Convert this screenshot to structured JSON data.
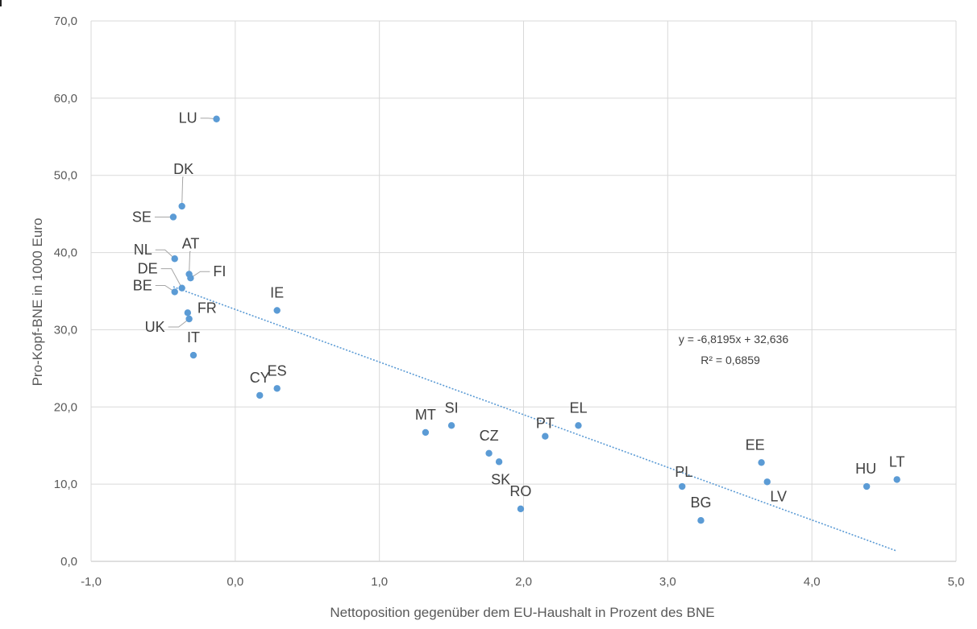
{
  "chart_data": {
    "type": "scatter",
    "title": "",
    "xlabel": "Nettoposition gegenüber dem EU-Haushalt in Prozent des BNE",
    "ylabel": "Pro-Kopf-BNE in 1000 Euro",
    "xlim": [
      -1.0,
      5.0
    ],
    "ylim": [
      0.0,
      70.0
    ],
    "x_ticks": [
      -1.0,
      0.0,
      1.0,
      2.0,
      3.0,
      4.0,
      5.0
    ],
    "x_tick_labels": [
      "-1,0",
      "0,0",
      "1,0",
      "2,0",
      "3,0",
      "4,0",
      "5,0"
    ],
    "y_ticks": [
      0,
      10,
      20,
      30,
      40,
      50,
      60,
      70
    ],
    "y_tick_labels": [
      "0,0",
      "10,0",
      "20,0",
      "30,0",
      "40,0",
      "50,0",
      "60,0",
      "70,0"
    ],
    "grid": true,
    "marker_color": "#5b9bd5",
    "trendline_color": "#5b9bd5",
    "points": [
      {
        "label": "LU",
        "x": -0.13,
        "y": 57.3
      },
      {
        "label": "DK",
        "x": -0.37,
        "y": 46.0
      },
      {
        "label": "SE",
        "x": -0.43,
        "y": 44.6
      },
      {
        "label": "NL",
        "x": -0.42,
        "y": 39.2
      },
      {
        "label": "AT",
        "x": -0.32,
        "y": 37.2
      },
      {
        "label": "FI",
        "x": -0.31,
        "y": 36.7
      },
      {
        "label": "DE",
        "x": -0.37,
        "y": 35.4
      },
      {
        "label": "BE",
        "x": -0.42,
        "y": 34.9
      },
      {
        "label": "FR",
        "x": -0.33,
        "y": 32.2
      },
      {
        "label": "UK",
        "x": -0.32,
        "y": 31.4
      },
      {
        "label": "IE",
        "x": 0.29,
        "y": 32.5
      },
      {
        "label": "IT",
        "x": -0.29,
        "y": 26.7
      },
      {
        "label": "CY",
        "x": 0.17,
        "y": 21.5
      },
      {
        "label": "ES",
        "x": 0.29,
        "y": 22.4
      },
      {
        "label": "MT",
        "x": 1.32,
        "y": 16.7
      },
      {
        "label": "SI",
        "x": 1.5,
        "y": 17.6
      },
      {
        "label": "CZ",
        "x": 1.76,
        "y": 14.0
      },
      {
        "label": "SK",
        "x": 1.83,
        "y": 12.9
      },
      {
        "label": "RO",
        "x": 1.98,
        "y": 6.8
      },
      {
        "label": "PT",
        "x": 2.15,
        "y": 16.2
      },
      {
        "label": "EL",
        "x": 2.38,
        "y": 17.6
      },
      {
        "label": "PL",
        "x": 3.1,
        "y": 9.7
      },
      {
        "label": "BG",
        "x": 3.23,
        "y": 5.3
      },
      {
        "label": "EE",
        "x": 3.65,
        "y": 12.8
      },
      {
        "label": "LV",
        "x": 3.69,
        "y": 10.3
      },
      {
        "label": "HU",
        "x": 4.38,
        "y": 9.7
      },
      {
        "label": "LT",
        "x": 4.59,
        "y": 10.6
      }
    ],
    "trendline": {
      "type": "linear",
      "slope": -6.8195,
      "intercept": 32.636,
      "x_range": [
        -0.43,
        4.59
      ],
      "equation_text": "y = -6,8195x + 32,636",
      "r2_text": "R² = 0,6859"
    }
  }
}
